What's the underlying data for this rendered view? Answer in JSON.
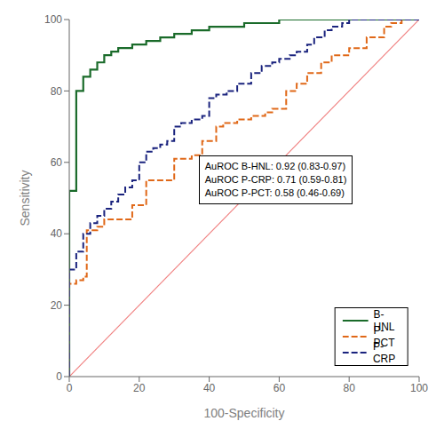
{
  "chart_data": {
    "type": "line",
    "title": "",
    "xlabel": "100-Specificity",
    "ylabel": "Sensitivity",
    "xlim": [
      0,
      100
    ],
    "ylim": [
      0,
      100
    ],
    "xticks": [
      0,
      20,
      40,
      60,
      80,
      100
    ],
    "yticks": [
      0,
      20,
      40,
      60,
      80,
      100
    ],
    "grid": false,
    "legend": "lower right",
    "annotation": "AuROC B-HNL: 0.92 (0.83-0.97)\nAuROC P-CRP: 0.71 (0.59-0.81)\nAuROC P-PCT: 0.58 (0.46-0.69)",
    "series": [
      {
        "type": "line",
        "color": "#f08080",
        "line_style": "solid",
        "x": [
          0,
          100
        ],
        "values": [
          0,
          100
        ]
      },
      {
        "name": "B-HNL",
        "type": "step",
        "color": "#1a6b2a",
        "line_style": "solid",
        "x": [
          0,
          0,
          2,
          2,
          4,
          4,
          6,
          6,
          8,
          8,
          10,
          10,
          12,
          12,
          14,
          14,
          18,
          18,
          22,
          22,
          26,
          26,
          30,
          30,
          35,
          35,
          40,
          40,
          50,
          50,
          60,
          60,
          65,
          65,
          70,
          70,
          80,
          80,
          90,
          90,
          95,
          95,
          100
        ],
        "values": [
          0,
          52,
          52,
          80,
          80,
          84,
          84,
          86,
          86,
          88,
          88,
          90,
          90,
          91,
          91,
          92,
          92,
          93,
          93,
          94,
          94,
          95,
          95,
          96,
          96,
          97,
          97,
          98,
          98,
          99,
          99,
          100,
          100,
          100,
          100,
          100,
          100,
          100,
          100,
          100,
          100,
          100,
          100
        ]
      },
      {
        "name": "P-PCT",
        "type": "step",
        "color": "#e06818",
        "line_style": "dashed",
        "x": [
          0,
          0,
          2,
          2,
          4,
          4,
          5,
          5,
          8,
          8,
          10,
          10,
          18,
          18,
          22,
          22,
          30,
          30,
          35,
          35,
          38,
          38,
          42,
          42,
          44,
          44,
          48,
          48,
          52,
          52,
          56,
          56,
          58,
          58,
          62,
          62,
          65,
          65,
          68,
          68,
          72,
          72,
          75,
          75,
          80,
          80,
          85,
          85,
          90,
          90,
          92,
          92,
          95,
          95,
          98,
          98,
          100
        ],
        "values": [
          0,
          26,
          26,
          27,
          27,
          28,
          28,
          41,
          41,
          42,
          42,
          44,
          44,
          48,
          48,
          55,
          55,
          61,
          61,
          62,
          62,
          66,
          66,
          70,
          70,
          71,
          71,
          72,
          72,
          73,
          73,
          74,
          74,
          75,
          75,
          80,
          80,
          82,
          82,
          85,
          85,
          88,
          88,
          90,
          90,
          92,
          92,
          95,
          95,
          98,
          98,
          99,
          99,
          100,
          100,
          100,
          100
        ]
      },
      {
        "name": "P-CRP",
        "type": "step",
        "color": "#1a237e",
        "line_style": "dashed",
        "x": [
          0,
          0,
          2,
          2,
          4,
          4,
          6,
          6,
          8,
          8,
          10,
          10,
          12,
          12,
          14,
          14,
          16,
          16,
          18,
          18,
          20,
          20,
          22,
          22,
          24,
          24,
          26,
          26,
          28,
          28,
          30,
          30,
          32,
          32,
          35,
          35,
          38,
          38,
          40,
          40,
          42,
          42,
          45,
          45,
          48,
          48,
          52,
          52,
          55,
          55,
          58,
          58,
          60,
          60,
          63,
          63,
          65,
          65,
          68,
          68,
          70,
          70,
          73,
          73,
          75,
          75,
          78,
          78,
          80,
          80,
          82,
          82,
          85,
          85,
          88,
          88,
          90,
          90,
          95,
          95,
          100
        ],
        "values": [
          0,
          30,
          30,
          35,
          35,
          40,
          40,
          43,
          43,
          45,
          45,
          47,
          47,
          49,
          49,
          51,
          51,
          53,
          53,
          55,
          55,
          60,
          60,
          63,
          63,
          64,
          64,
          65,
          65,
          66,
          66,
          70,
          70,
          71,
          71,
          72,
          72,
          73,
          73,
          78,
          78,
          79,
          79,
          80,
          80,
          82,
          82,
          85,
          85,
          87,
          87,
          88,
          88,
          89,
          89,
          90,
          90,
          91,
          91,
          93,
          93,
          95,
          95,
          97,
          97,
          98,
          98,
          99,
          99,
          100,
          100,
          100,
          100,
          100,
          100,
          100,
          100,
          100,
          100,
          100,
          100
        ]
      }
    ]
  }
}
